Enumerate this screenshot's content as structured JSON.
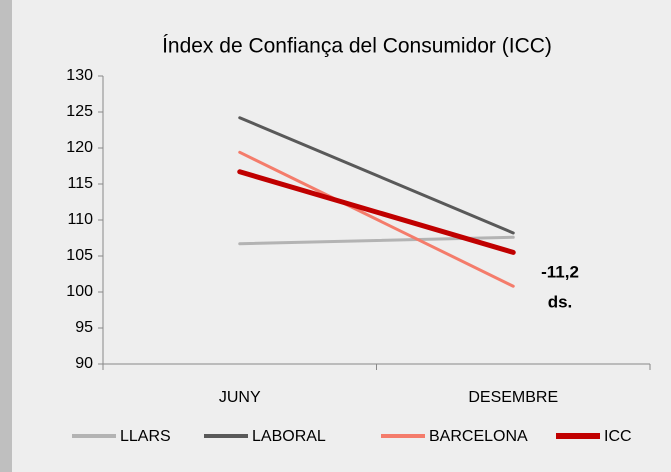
{
  "chart_data": {
    "type": "line",
    "title": "Índex de Confiança del Consumidor (ICC)",
    "categories": [
      "JUNY",
      "DESEMBRE"
    ],
    "series": [
      {
        "name": "LLARS",
        "color": "#b3b3b3",
        "values": [
          106.7,
          107.6
        ]
      },
      {
        "name": "LABORAL",
        "color": "#595959",
        "values": [
          124.2,
          108.2
        ]
      },
      {
        "name": "BARCELONA",
        "color": "#f47c6b",
        "values": [
          119.4,
          100.8
        ]
      },
      {
        "name": "ICC",
        "color": "#c00000",
        "values": [
          116.7,
          105.5
        ]
      }
    ],
    "annotation": [
      "-11,2",
      "ds."
    ],
    "annotation_color": "#c00000",
    "ylim": [
      90,
      130
    ],
    "yticks": [
      90,
      95,
      100,
      105,
      110,
      115,
      120,
      125,
      130
    ],
    "grid": false,
    "legend": "bottom"
  }
}
